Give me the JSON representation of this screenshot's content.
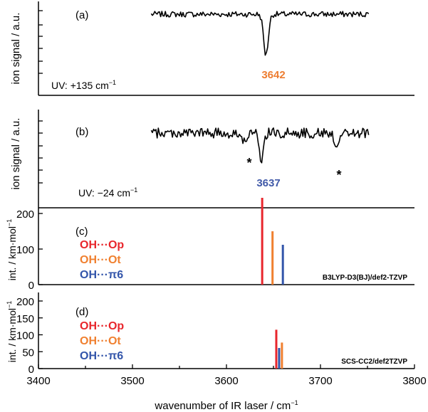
{
  "x_axis": {
    "label": "wavenumber of IR laser / cm",
    "label_sup": "−1",
    "range": [
      3400,
      3800
    ],
    "ticks": [
      "3400",
      "3500",
      "3600",
      "3700",
      "3800"
    ]
  },
  "panels": [
    {
      "letter": "(a)",
      "ylabel": "ion signal / a.u.",
      "uv_text": "UV:  +135 cm",
      "uv_sup": "−1",
      "peak_label": "3642",
      "peak_color": "#ed7d31"
    },
    {
      "letter": "(b)",
      "ylabel": "ion signal / a.u.",
      "uv_text": "UV:  −24 cm",
      "uv_sup": "−1",
      "peak_label": "3637",
      "peak_color": "#4059a8",
      "marker": "*"
    },
    {
      "letter": "(c)",
      "ylabel": "int. / km·mol",
      "ylabel_sup": "−1",
      "yticks": [
        "0",
        "100",
        "200"
      ],
      "method": "B3LYP-D3(BJ)/def2-TZVP",
      "legend": [
        {
          "label": "OH···Op",
          "color": "#e8262c"
        },
        {
          "label": "OH···Ot",
          "color": "#f08030"
        },
        {
          "label": "OH···π6",
          "color": "#3355aa"
        }
      ]
    },
    {
      "letter": "(d)",
      "ylabel": "int. / km·mol",
      "ylabel_sup": "−1",
      "yticks": [
        "0",
        "50",
        "100",
        "150",
        "200"
      ],
      "method": "SCS-CC2/def2TZVP",
      "legend": [
        {
          "label": "OH···Op",
          "color": "#e8262c"
        },
        {
          "label": "OH···Ot",
          "color": "#f08030"
        },
        {
          "label": "OH···π6",
          "color": "#3355aa"
        }
      ]
    }
  ],
  "chart_data": [
    {
      "type": "line",
      "panel": "(a)",
      "xlabel": "wavenumber of IR laser / cm−1",
      "ylabel": "ion signal / a.u.",
      "xlim": [
        3400,
        3800
      ],
      "x_range_measured": [
        3520,
        3752
      ],
      "baseline": 1.0,
      "noise": 0.05,
      "dips": [
        {
          "x": 3642,
          "depth": 0.72,
          "width": 3.5,
          "label": "3642"
        }
      ],
      "annotation": "UV:  +135 cm−1"
    },
    {
      "type": "line",
      "panel": "(b)",
      "xlabel": "wavenumber of IR laser / cm−1",
      "ylabel": "ion signal / a.u.",
      "xlim": [
        3400,
        3800
      ],
      "x_range_measured": [
        3520,
        3752
      ],
      "baseline": 1.0,
      "noise": 0.09,
      "dips": [
        {
          "x": 3637,
          "depth": 0.55,
          "width": 3.0,
          "label": "3637"
        },
        {
          "x": 3618,
          "depth": 0.18,
          "width": 3.0,
          "label": "*"
        },
        {
          "x": 3717,
          "depth": 0.22,
          "width": 3.0,
          "label": "*"
        }
      ],
      "annotation": "UV:  −24 cm−1"
    },
    {
      "type": "bar",
      "panel": "(c)",
      "xlabel": "wavenumber of IR laser / cm−1",
      "ylabel": "int. / km·mol−1",
      "xlim": [
        3400,
        3800
      ],
      "ylim": [
        0,
        250
      ],
      "series": [
        {
          "name": "OH···Op",
          "x": 3638,
          "value": 244,
          "color": "#e8262c"
        },
        {
          "name": "OH···Ot",
          "x": 3649,
          "value": 150,
          "color": "#f08030"
        },
        {
          "name": "OH···π6",
          "x": 3660,
          "value": 112,
          "color": "#3355aa"
        }
      ],
      "note": "B3LYP-D3(BJ)/def2-TZVP"
    },
    {
      "type": "bar",
      "panel": "(d)",
      "xlabel": "wavenumber of IR laser / cm−1",
      "ylabel": "int. / km·mol−1",
      "xlim": [
        3400,
        3800
      ],
      "ylim": [
        0,
        200
      ],
      "series": [
        {
          "name": "OH···Op",
          "x": 3653,
          "value": 115,
          "color": "#e8262c"
        },
        {
          "name": "OH···Ot",
          "x": 3659,
          "value": 77,
          "color": "#f08030"
        },
        {
          "name": "OH···π6",
          "x": 3656,
          "value": 61,
          "color": "#3355aa"
        }
      ],
      "note": "SCS-CC2/def2TZVP"
    }
  ]
}
